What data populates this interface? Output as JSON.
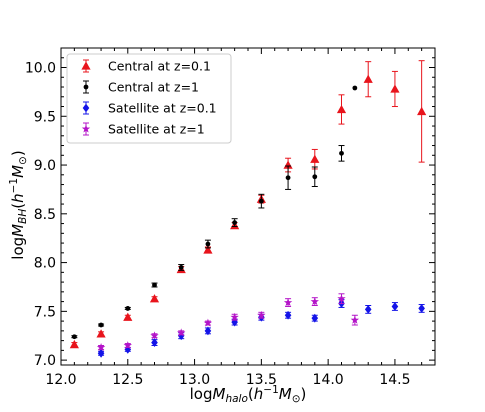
{
  "chart_data": {
    "type": "scatter",
    "xlabel": {
      "main": "log",
      "italic": "M",
      "sub": "halo",
      "paren_open": "(",
      "h": "h",
      "sup": "−1",
      "M": "M",
      "odot": "⊙",
      "paren_close": ")"
    },
    "ylabel": {
      "main": "log",
      "italic": "M",
      "sub": "BH",
      "paren_open": "(",
      "h": "h",
      "sup": "−1",
      "M": "M",
      "odot": "⊙",
      "paren_close": ")"
    },
    "xlim": [
      12.0,
      14.8
    ],
    "ylim": [
      6.95,
      10.2
    ],
    "x_ticks": [
      12.0,
      12.5,
      13.0,
      13.5,
      14.0,
      14.5
    ],
    "x_tick_labels": [
      "12.0",
      "12.5",
      "13.0",
      "13.5",
      "14.0",
      "14.5"
    ],
    "y_ticks": [
      7.0,
      7.5,
      8.0,
      8.5,
      9.0,
      9.5,
      10.0
    ],
    "y_tick_labels": [
      "7.0",
      "7.5",
      "8.0",
      "8.5",
      "9.0",
      "9.5",
      "10.0"
    ],
    "legend_position": "top-left",
    "series": [
      {
        "name": "Central at z=0.1",
        "marker": "triangle",
        "color": "#e8141c",
        "points": [
          {
            "x": 12.1,
            "y": 7.16,
            "err": 0.02
          },
          {
            "x": 12.3,
            "y": 7.27,
            "err": 0.02
          },
          {
            "x": 12.5,
            "y": 7.44,
            "err": 0.02
          },
          {
            "x": 12.7,
            "y": 7.63,
            "err": 0.02
          },
          {
            "x": 12.9,
            "y": 7.93,
            "err": 0.03
          },
          {
            "x": 13.1,
            "y": 8.13,
            "err": 0.03
          },
          {
            "x": 13.3,
            "y": 8.38,
            "err": 0.03
          },
          {
            "x": 13.5,
            "y": 8.65,
            "err": 0.04
          },
          {
            "x": 13.7,
            "y": 9.0,
            "err": 0.07
          },
          {
            "x": 13.9,
            "y": 9.06,
            "err": 0.1
          },
          {
            "x": 14.1,
            "y": 9.57,
            "err": 0.15
          },
          {
            "x": 14.3,
            "y": 9.88,
            "err": 0.18
          },
          {
            "x": 14.5,
            "y": 9.78,
            "err": 0.18
          },
          {
            "x": 14.7,
            "y": 9.55,
            "err": 0.52
          }
        ]
      },
      {
        "name": "Central at z=1",
        "marker": "circle",
        "color": "#000000",
        "points": [
          {
            "x": 12.1,
            "y": 7.24,
            "err": 0.01
          },
          {
            "x": 12.3,
            "y": 7.36,
            "err": 0.01
          },
          {
            "x": 12.5,
            "y": 7.53,
            "err": 0.01
          },
          {
            "x": 12.7,
            "y": 7.77,
            "err": 0.02
          },
          {
            "x": 12.9,
            "y": 7.95,
            "err": 0.03
          },
          {
            "x": 13.1,
            "y": 8.19,
            "err": 0.04
          },
          {
            "x": 13.3,
            "y": 8.41,
            "err": 0.04
          },
          {
            "x": 13.5,
            "y": 8.63,
            "err": 0.07
          },
          {
            "x": 13.7,
            "y": 8.87,
            "err": 0.12
          },
          {
            "x": 13.9,
            "y": 8.88,
            "err": 0.1
          },
          {
            "x": 14.1,
            "y": 9.12,
            "err": 0.08
          },
          {
            "x": 14.2,
            "y": 9.79,
            "err": 0.0
          }
        ]
      },
      {
        "name": "Satellite at z=0.1",
        "marker": "diamond",
        "color": "#1414e8",
        "points": [
          {
            "x": 12.3,
            "y": 7.07,
            "err": 0.02
          },
          {
            "x": 12.5,
            "y": 7.11,
            "err": 0.02
          },
          {
            "x": 12.7,
            "y": 7.18,
            "err": 0.03
          },
          {
            "x": 12.9,
            "y": 7.25,
            "err": 0.03
          },
          {
            "x": 13.1,
            "y": 7.3,
            "err": 0.03
          },
          {
            "x": 13.3,
            "y": 7.39,
            "err": 0.03
          },
          {
            "x": 13.5,
            "y": 7.44,
            "err": 0.03
          },
          {
            "x": 13.7,
            "y": 7.46,
            "err": 0.03
          },
          {
            "x": 13.9,
            "y": 7.43,
            "err": 0.03
          },
          {
            "x": 14.1,
            "y": 7.58,
            "err": 0.04
          },
          {
            "x": 14.3,
            "y": 7.52,
            "err": 0.04
          },
          {
            "x": 14.5,
            "y": 7.55,
            "err": 0.04
          },
          {
            "x": 14.7,
            "y": 7.53,
            "err": 0.04
          }
        ]
      },
      {
        "name": "Satellite at z=1",
        "marker": "star",
        "color": "#b414c8",
        "points": [
          {
            "x": 12.3,
            "y": 7.13,
            "err": 0.02
          },
          {
            "x": 12.5,
            "y": 7.15,
            "err": 0.02
          },
          {
            "x": 12.7,
            "y": 7.25,
            "err": 0.02
          },
          {
            "x": 12.9,
            "y": 7.28,
            "err": 0.02
          },
          {
            "x": 13.1,
            "y": 7.38,
            "err": 0.02
          },
          {
            "x": 13.3,
            "y": 7.44,
            "err": 0.03
          },
          {
            "x": 13.5,
            "y": 7.46,
            "err": 0.03
          },
          {
            "x": 13.7,
            "y": 7.59,
            "err": 0.04
          },
          {
            "x": 13.9,
            "y": 7.6,
            "err": 0.04
          },
          {
            "x": 14.1,
            "y": 7.63,
            "err": 0.05
          },
          {
            "x": 14.2,
            "y": 7.41,
            "err": 0.05
          }
        ]
      }
    ]
  }
}
